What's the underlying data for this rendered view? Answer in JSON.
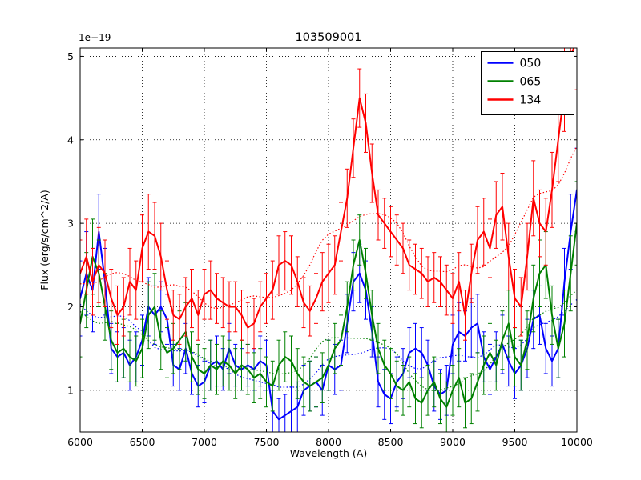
{
  "chart_data": {
    "type": "line",
    "title": "103509001",
    "xlabel": "Wavelength (A)",
    "ylabel": "Flux (erg/s/cm^2/A)",
    "y_offset_label": "1e−19",
    "xlim": [
      6000,
      10000
    ],
    "ylim": [
      0.5,
      5.1
    ],
    "xticks": [
      6000,
      6500,
      7000,
      7500,
      8000,
      8500,
      9000,
      9500,
      10000
    ],
    "yticks": [
      1,
      2,
      3,
      4,
      5
    ],
    "grid": true,
    "grid_style": "dotted",
    "legend_position": "upper right",
    "smoothed_overlay": true,
    "x": [
      6000,
      6050,
      6100,
      6150,
      6200,
      6250,
      6300,
      6350,
      6400,
      6450,
      6500,
      6550,
      6600,
      6650,
      6700,
      6750,
      6800,
      6850,
      6900,
      6950,
      7000,
      7050,
      7100,
      7150,
      7200,
      7250,
      7300,
      7350,
      7400,
      7450,
      7500,
      7550,
      7600,
      7650,
      7700,
      7750,
      7800,
      7850,
      7900,
      7950,
      8000,
      8050,
      8100,
      8150,
      8200,
      8250,
      8300,
      8350,
      8400,
      8450,
      8500,
      8550,
      8600,
      8650,
      8700,
      8750,
      8800,
      8850,
      8900,
      8950,
      9000,
      9050,
      9100,
      9150,
      9200,
      9250,
      9300,
      9350,
      9400,
      9450,
      9500,
      9550,
      9600,
      9650,
      9700,
      9750,
      9800,
      9850,
      9900,
      9950,
      10000
    ],
    "series": [
      {
        "name": "050",
        "color": "#0000ff",
        "values": [
          2.1,
          2.4,
          2.2,
          2.9,
          2.3,
          1.5,
          1.4,
          1.45,
          1.3,
          1.4,
          1.6,
          2.0,
          1.9,
          2.0,
          1.85,
          1.3,
          1.25,
          1.5,
          1.2,
          1.05,
          1.1,
          1.3,
          1.35,
          1.25,
          1.5,
          1.3,
          1.25,
          1.3,
          1.25,
          1.35,
          1.3,
          0.75,
          0.65,
          0.7,
          0.75,
          0.8,
          1.0,
          1.05,
          1.1,
          1.0,
          1.3,
          1.25,
          1.3,
          1.8,
          2.3,
          2.4,
          2.2,
          1.7,
          1.1,
          0.95,
          0.9,
          1.1,
          1.2,
          1.45,
          1.5,
          1.45,
          1.3,
          1.05,
          0.95,
          1.0,
          1.55,
          1.7,
          1.65,
          1.75,
          1.8,
          1.4,
          1.25,
          1.4,
          1.55,
          1.35,
          1.2,
          1.3,
          1.5,
          1.85,
          1.9,
          1.5,
          1.35,
          1.5,
          2.3,
          2.9,
          3.4
        ],
        "errors": [
          0.45,
          0.5,
          0.5,
          0.45,
          0.4,
          0.3,
          0.3,
          0.3,
          0.3,
          0.3,
          0.3,
          0.35,
          0.35,
          0.3,
          0.3,
          0.25,
          0.25,
          0.3,
          0.25,
          0.25,
          0.25,
          0.3,
          0.3,
          0.25,
          0.3,
          0.25,
          0.25,
          0.25,
          0.25,
          0.3,
          0.3,
          0.25,
          0.25,
          0.25,
          0.3,
          0.3,
          0.3,
          0.3,
          0.3,
          0.3,
          0.3,
          0.3,
          0.3,
          0.35,
          0.35,
          0.35,
          0.35,
          0.3,
          0.3,
          0.3,
          0.3,
          0.3,
          0.3,
          0.3,
          0.3,
          0.3,
          0.3,
          0.3,
          0.3,
          0.3,
          0.35,
          0.35,
          0.3,
          0.35,
          0.35,
          0.3,
          0.3,
          0.3,
          0.35,
          0.3,
          0.3,
          0.3,
          0.35,
          0.35,
          0.35,
          0.3,
          0.3,
          0.35,
          0.4,
          0.45,
          0.5
        ]
      },
      {
        "name": "065",
        "color": "#008000",
        "values": [
          1.8,
          2.2,
          2.6,
          2.4,
          2.0,
          1.6,
          1.45,
          1.5,
          1.4,
          1.35,
          1.5,
          1.9,
          2.0,
          1.6,
          1.45,
          1.5,
          1.6,
          1.7,
          1.4,
          1.25,
          1.2,
          1.3,
          1.25,
          1.35,
          1.3,
          1.2,
          1.3,
          1.25,
          1.15,
          1.2,
          1.1,
          1.05,
          1.3,
          1.4,
          1.35,
          1.2,
          1.1,
          1.05,
          1.1,
          1.15,
          1.3,
          1.5,
          1.6,
          2.0,
          2.5,
          2.8,
          2.4,
          1.9,
          1.5,
          1.3,
          1.2,
          1.05,
          1.0,
          1.1,
          0.9,
          0.85,
          1.0,
          1.1,
          0.9,
          0.8,
          1.0,
          1.15,
          0.85,
          0.9,
          1.1,
          1.3,
          1.45,
          1.3,
          1.6,
          1.8,
          1.4,
          1.3,
          1.6,
          2.1,
          2.4,
          2.5,
          1.9,
          1.5,
          1.8,
          2.4,
          3.0
        ],
        "errors": [
          0.4,
          0.45,
          0.45,
          0.4,
          0.4,
          0.35,
          0.35,
          0.35,
          0.3,
          0.3,
          0.35,
          0.4,
          0.4,
          0.35,
          0.3,
          0.3,
          0.35,
          0.35,
          0.3,
          0.3,
          0.3,
          0.3,
          0.3,
          0.3,
          0.3,
          0.3,
          0.3,
          0.3,
          0.3,
          0.3,
          0.3,
          0.3,
          0.3,
          0.3,
          0.3,
          0.3,
          0.3,
          0.3,
          0.3,
          0.3,
          0.3,
          0.3,
          0.3,
          0.3,
          0.3,
          0.3,
          0.3,
          0.3,
          0.3,
          0.3,
          0.3,
          0.3,
          0.3,
          0.3,
          0.3,
          0.3,
          0.3,
          0.3,
          0.3,
          0.3,
          0.3,
          0.35,
          0.3,
          0.3,
          0.35,
          0.35,
          0.35,
          0.3,
          0.35,
          0.4,
          0.35,
          0.3,
          0.35,
          0.4,
          0.4,
          0.4,
          0.35,
          0.35,
          0.4,
          0.45,
          0.5
        ]
      },
      {
        "name": "134",
        "color": "#ff0000",
        "values": [
          2.4,
          2.6,
          2.3,
          2.5,
          2.4,
          2.1,
          1.9,
          2.0,
          2.3,
          2.2,
          2.7,
          2.9,
          2.85,
          2.6,
          2.2,
          1.9,
          1.85,
          2.0,
          2.1,
          1.9,
          2.15,
          2.2,
          2.1,
          2.05,
          2.0,
          2.0,
          1.9,
          1.75,
          1.8,
          2.0,
          2.1,
          2.2,
          2.5,
          2.55,
          2.5,
          2.3,
          2.05,
          1.95,
          2.1,
          2.3,
          2.4,
          2.5,
          2.9,
          3.3,
          3.9,
          4.5,
          4.2,
          3.6,
          3.1,
          3.0,
          2.9,
          2.8,
          2.7,
          2.5,
          2.45,
          2.4,
          2.3,
          2.35,
          2.3,
          2.2,
          2.1,
          2.3,
          1.9,
          2.4,
          2.8,
          2.9,
          2.7,
          3.1,
          3.2,
          2.6,
          2.1,
          2.0,
          2.6,
          3.3,
          3.0,
          2.9,
          3.4,
          4.0,
          4.6,
          5.0,
          5.2
        ],
        "errors": [
          0.4,
          0.45,
          0.4,
          0.45,
          0.4,
          0.35,
          0.35,
          0.35,
          0.4,
          0.35,
          0.4,
          0.45,
          0.4,
          0.4,
          0.35,
          0.3,
          0.3,
          0.35,
          0.35,
          0.3,
          0.3,
          0.35,
          0.3,
          0.3,
          0.3,
          0.3,
          0.3,
          0.3,
          0.3,
          0.3,
          0.3,
          0.35,
          0.35,
          0.35,
          0.35,
          0.3,
          0.3,
          0.3,
          0.3,
          0.35,
          0.35,
          0.35,
          0.35,
          0.35,
          0.35,
          0.35,
          0.35,
          0.35,
          0.3,
          0.3,
          0.3,
          0.3,
          0.3,
          0.3,
          0.3,
          0.3,
          0.3,
          0.3,
          0.3,
          0.3,
          0.3,
          0.35,
          0.3,
          0.35,
          0.4,
          0.4,
          0.35,
          0.4,
          0.4,
          0.4,
          0.35,
          0.35,
          0.4,
          0.45,
          0.4,
          0.4,
          0.45,
          0.5,
          0.5,
          0.55,
          0.6
        ]
      }
    ]
  }
}
